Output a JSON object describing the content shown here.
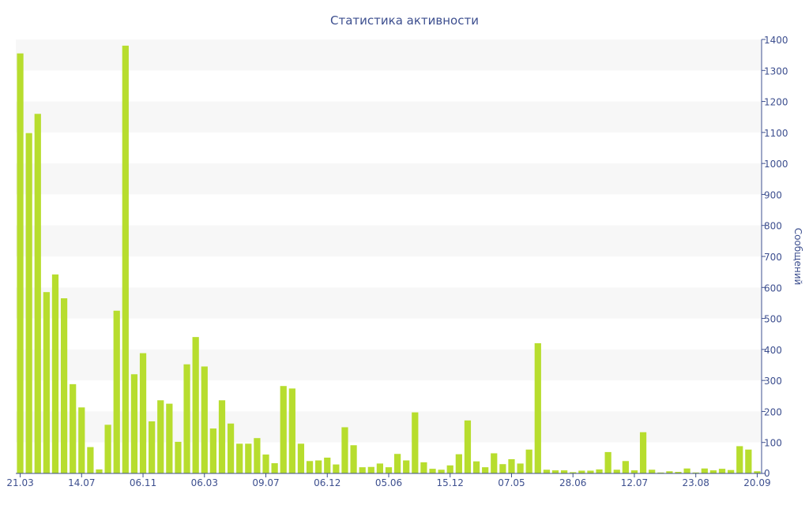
{
  "chart_data": {
    "type": "bar",
    "title": "Статистика активности",
    "xlabel": "",
    "ylabel": "Сообщений",
    "ylim": [
      0,
      1400
    ],
    "yticks": [
      0,
      100,
      200,
      300,
      400,
      500,
      600,
      700,
      800,
      900,
      1000,
      1100,
      1200,
      1300,
      1400
    ],
    "x_tick_labels": [
      {
        "index": 0,
        "label": "21.03"
      },
      {
        "index": 7,
        "label": "14.07"
      },
      {
        "index": 14,
        "label": "06.11"
      },
      {
        "index": 21,
        "label": "06.03"
      },
      {
        "index": 28,
        "label": "09.07"
      },
      {
        "index": 35,
        "label": "06.12"
      },
      {
        "index": 42,
        "label": "05.06"
      },
      {
        "index": 49,
        "label": "15.12"
      },
      {
        "index": 56,
        "label": "07.05"
      },
      {
        "index": 63,
        "label": "28.06"
      },
      {
        "index": 70,
        "label": "12.07"
      },
      {
        "index": 77,
        "label": "23.08"
      },
      {
        "index": 84,
        "label": "20.09"
      }
    ],
    "values": [
      1355,
      1098,
      1160,
      585,
      642,
      565,
      288,
      213,
      85,
      13,
      157,
      525,
      1380,
      320,
      388,
      168,
      236,
      225,
      102,
      352,
      440,
      345,
      145,
      236,
      161,
      96,
      96,
      114,
      61,
      33,
      282,
      274,
      96,
      40,
      42,
      51,
      29,
      149,
      91,
      20,
      21,
      32,
      20,
      63,
      42,
      197,
      36,
      15,
      12,
      26,
      62,
      171,
      39,
      20,
      65,
      30,
      46,
      32,
      77,
      420,
      12,
      10,
      10,
      4,
      9,
      9,
      13,
      69,
      12,
      40,
      10,
      133,
      12,
      3,
      7,
      5,
      16,
      3,
      16,
      10,
      15,
      11,
      88,
      77,
      7
    ],
    "bar_color": "#b7dd2e",
    "band_color": "#f7f7f7",
    "axis_color": "#3d4f8f",
    "grid": "alternating-bands",
    "y_axis_side": "right"
  }
}
